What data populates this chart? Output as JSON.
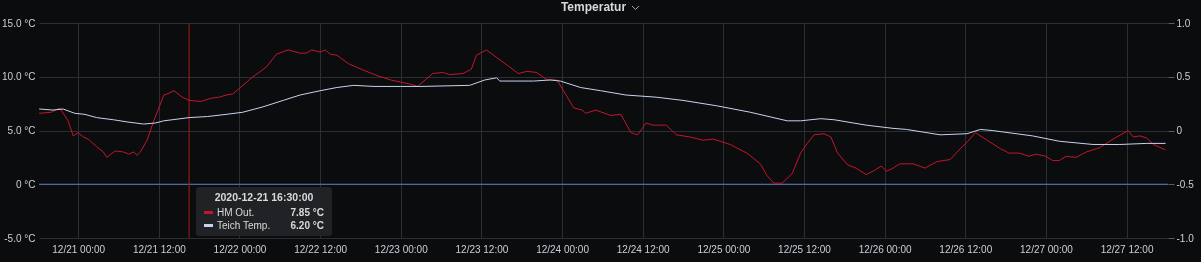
{
  "chart_data": {
    "type": "line",
    "title": "Temperatur",
    "xlim": [
      "2020-12-20T18:10",
      "2020-12-27T18:10"
    ],
    "xticks": [
      {
        "value": "2020-12-21T00:00",
        "label": "12/21 00:00"
      },
      {
        "value": "2020-12-21T12:00",
        "label": "12/21 12:00"
      },
      {
        "value": "2020-12-22T00:00",
        "label": "12/22 00:00"
      },
      {
        "value": "2020-12-22T12:00",
        "label": "12/22 12:00"
      },
      {
        "value": "2020-12-23T00:00",
        "label": "12/23 00:00"
      },
      {
        "value": "2020-12-23T12:00",
        "label": "12/23 12:00"
      },
      {
        "value": "2020-12-24T00:00",
        "label": "12/24 00:00"
      },
      {
        "value": "2020-12-24T12:00",
        "label": "12/24 12:00"
      },
      {
        "value": "2020-12-25T00:00",
        "label": "12/25 00:00"
      },
      {
        "value": "2020-12-25T12:00",
        "label": "12/25 12:00"
      },
      {
        "value": "2020-12-26T00:00",
        "label": "12/26 00:00"
      },
      {
        "value": "2020-12-26T12:00",
        "label": "12/26 12:00"
      },
      {
        "value": "2020-12-27T00:00",
        "label": "12/27 00:00"
      },
      {
        "value": "2020-12-27T12:00",
        "label": "12/27 12:00"
      }
    ],
    "ylim": [
      -5,
      15
    ],
    "yticks": [
      {
        "value": -5,
        "label": "-5.0 °C"
      },
      {
        "value": 0,
        "label": "0 °C"
      },
      {
        "value": 5,
        "label": "5.0 °C"
      },
      {
        "value": 10,
        "label": "10.0 °C"
      },
      {
        "value": 15,
        "label": "15.0 °C"
      }
    ],
    "y2lim": [
      -1,
      1
    ],
    "y2ticks": [
      {
        "value": -1,
        "label": "-1.0"
      },
      {
        "value": -0.5,
        "label": "-0.5"
      },
      {
        "value": 0,
        "label": "0"
      },
      {
        "value": 0.5,
        "label": "0.5"
      },
      {
        "value": 1,
        "label": "1.0"
      }
    ],
    "grid": true,
    "legend": "bottom left",
    "line_style": "solid",
    "series": [
      {
        "name": "HM Out.",
        "color": "#c4162a",
        "x": [
          "2020-12-20T18:15",
          "2020-12-20T20:00",
          "2020-12-20T21:15",
          "2020-12-20T22:30",
          "2020-12-20T23:15",
          "2020-12-21T00:00",
          "2020-12-21T00:45",
          "2020-12-21T01:30",
          "2020-12-21T02:45",
          "2020-12-21T03:45",
          "2020-12-21T04:15",
          "2020-12-21T05:30",
          "2020-12-21T06:45",
          "2020-12-21T07:30",
          "2020-12-21T08:15",
          "2020-12-21T08:45",
          "2020-12-21T09:15",
          "2020-12-21T10:15",
          "2020-12-21T11:15",
          "2020-12-21T12:45",
          "2020-12-21T13:15",
          "2020-12-21T14:15",
          "2020-12-21T15:30",
          "2020-12-21T16:30",
          "2020-12-21T18:15",
          "2020-12-21T19:45",
          "2020-12-21T21:00",
          "2020-12-21T22:00",
          "2020-12-21T23:00",
          "2020-12-22T00:30",
          "2020-12-22T02:00",
          "2020-12-22T04:00",
          "2020-12-22T05:30",
          "2020-12-22T07:15",
          "2020-12-22T09:00",
          "2020-12-22T10:00",
          "2020-12-22T10:45",
          "2020-12-22T12:00",
          "2020-12-22T12:45",
          "2020-12-22T13:30",
          "2020-12-22T14:30",
          "2020-12-22T16:15",
          "2020-12-22T18:30",
          "2020-12-22T20:30",
          "2020-12-22T22:30",
          "2020-12-23T00:00",
          "2020-12-23T01:30",
          "2020-12-23T02:30",
          "2020-12-23T04:45",
          "2020-12-23T06:15",
          "2020-12-23T07:15",
          "2020-12-23T09:15",
          "2020-12-23T10:30",
          "2020-12-23T11:15",
          "2020-12-23T12:45",
          "2020-12-23T14:15",
          "2020-12-23T16:00",
          "2020-12-23T17:30",
          "2020-12-23T18:45",
          "2020-12-23T20:15",
          "2020-12-23T21:45",
          "2020-12-23T23:15",
          "2020-12-24T00:30",
          "2020-12-24T01:45",
          "2020-12-24T03:00",
          "2020-12-24T03:30",
          "2020-12-24T05:00",
          "2020-12-24T07:15",
          "2020-12-24T08:45",
          "2020-12-24T10:15",
          "2020-12-24T11:15",
          "2020-12-24T12:30",
          "2020-12-24T13:30",
          "2020-12-24T15:30",
          "2020-12-24T17:00",
          "2020-12-24T19:00",
          "2020-12-24T21:00",
          "2020-12-24T22:30",
          "2020-12-25T01:00",
          "2020-12-25T03:30",
          "2020-12-25T05:30",
          "2020-12-25T06:30",
          "2020-12-25T07:30",
          "2020-12-25T08:45",
          "2020-12-25T10:15",
          "2020-12-25T11:30",
          "2020-12-25T12:30",
          "2020-12-25T13:30",
          "2020-12-25T15:00",
          "2020-12-25T16:00",
          "2020-12-25T17:00",
          "2020-12-25T18:30",
          "2020-12-25T19:45",
          "2020-12-25T21:15",
          "2020-12-25T22:15",
          "2020-12-25T23:30",
          "2020-12-26T00:15",
          "2020-12-26T01:15",
          "2020-12-26T02:15",
          "2020-12-26T04:15",
          "2020-12-26T06:00",
          "2020-12-26T07:45",
          "2020-12-26T09:45",
          "2020-12-26T11:15",
          "2020-12-26T12:15",
          "2020-12-26T13:30",
          "2020-12-26T15:15",
          "2020-12-26T17:15",
          "2020-12-26T18:30",
          "2020-12-26T20:00",
          "2020-12-26T21:30",
          "2020-12-26T22:30",
          "2020-12-27T00:00",
          "2020-12-27T01:00",
          "2020-12-27T02:00",
          "2020-12-27T03:00",
          "2020-12-27T04:30",
          "2020-12-27T06:00",
          "2020-12-27T08:00",
          "2020-12-27T10:00",
          "2020-12-27T12:15",
          "2020-12-27T13:00",
          "2020-12-27T14:00",
          "2020-12-27T15:00",
          "2020-12-27T16:00",
          "2020-12-27T17:45"
        ],
        "values": [
          6.6,
          6.7,
          7.1,
          5.9,
          4.5,
          4.8,
          4.4,
          4.2,
          3.5,
          3.0,
          2.5,
          3.1,
          3.0,
          2.8,
          3.0,
          2.7,
          3.0,
          4.1,
          5.9,
          8.3,
          8.4,
          8.7,
          8.1,
          7.8,
          7.7,
          8.0,
          8.1,
          8.3,
          8.4,
          9.2,
          10.0,
          10.9,
          12.1,
          12.5,
          12.2,
          12.2,
          12.5,
          12.3,
          12.5,
          12.1,
          12.0,
          11.2,
          10.6,
          10.1,
          9.7,
          9.5,
          9.3,
          9.1,
          10.3,
          10.4,
          10.2,
          10.3,
          10.7,
          12.0,
          12.5,
          11.8,
          11.0,
          10.3,
          10.5,
          10.4,
          9.7,
          9.7,
          8.4,
          7.1,
          6.9,
          6.6,
          6.9,
          6.4,
          6.5,
          4.8,
          4.6,
          5.7,
          5.5,
          5.5,
          4.6,
          4.4,
          4.1,
          4.2,
          3.7,
          2.9,
          1.9,
          0.8,
          0.1,
          0.1,
          1.0,
          2.9,
          3.8,
          4.6,
          4.7,
          4.4,
          2.9,
          1.8,
          1.5,
          0.9,
          1.2,
          1.7,
          1.2,
          1.5,
          1.9,
          1.9,
          1.5,
          2.1,
          2.3,
          3.3,
          3.9,
          4.8,
          4.1,
          3.3,
          2.9,
          2.9,
          2.6,
          2.8,
          2.6,
          2.2,
          2.2,
          2.6,
          2.5,
          3.0,
          3.4,
          4.2,
          5.0,
          4.4,
          4.5,
          4.3,
          3.7,
          3.2
        ]
      },
      {
        "name": "Teich Temp.",
        "color": "#c5d3ec",
        "x": [
          "2020-12-20T18:15",
          "2020-12-20T20:15",
          "2020-12-20T21:45",
          "2020-12-20T23:30",
          "2020-12-21T01:00",
          "2020-12-21T02:45",
          "2020-12-21T05:15",
          "2020-12-21T07:15",
          "2020-12-21T09:45",
          "2020-12-21T11:30",
          "2020-12-21T12:45",
          "2020-12-21T16:30",
          "2020-12-21T19:15",
          "2020-12-21T22:00",
          "2020-12-22T00:30",
          "2020-12-22T03:30",
          "2020-12-22T06:30",
          "2020-12-22T09:00",
          "2020-12-22T12:00",
          "2020-12-22T14:30",
          "2020-12-22T17:00",
          "2020-12-22T20:00",
          "2020-12-23T00:00",
          "2020-12-23T03:00",
          "2020-12-23T10:15",
          "2020-12-23T12:30",
          "2020-12-23T14:15",
          "2020-12-23T14:45",
          "2020-12-23T19:45",
          "2020-12-23T22:15",
          "2020-12-23T23:45",
          "2020-12-24T02:45",
          "2020-12-24T05:45",
          "2020-12-24T09:30",
          "2020-12-24T14:00",
          "2020-12-24T18:00",
          "2020-12-24T23:00",
          "2020-12-25T04:00",
          "2020-12-25T09:30",
          "2020-12-25T11:30",
          "2020-12-25T14:30",
          "2020-12-25T16:30",
          "2020-12-25T21:15",
          "2020-12-26T01:15",
          "2020-12-26T03:15",
          "2020-12-26T08:15",
          "2020-12-26T12:15",
          "2020-12-26T14:15",
          "2020-12-26T16:00",
          "2020-12-26T22:00",
          "2020-12-27T02:00",
          "2020-12-27T07:00",
          "2020-12-27T11:00",
          "2020-12-27T15:00",
          "2020-12-27T17:45"
        ],
        "values": [
          7.0,
          6.9,
          7.0,
          6.6,
          6.5,
          6.2,
          6.0,
          5.8,
          5.6,
          5.7,
          5.9,
          6.2,
          6.3,
          6.5,
          6.7,
          7.2,
          7.8,
          8.3,
          8.7,
          9.0,
          9.2,
          9.1,
          9.1,
          9.1,
          9.2,
          9.7,
          9.9,
          9.6,
          9.6,
          9.7,
          9.6,
          9.0,
          8.7,
          8.3,
          8.1,
          7.8,
          7.3,
          6.7,
          5.9,
          5.9,
          6.1,
          6.0,
          5.5,
          5.2,
          5.1,
          4.6,
          4.7,
          5.1,
          5.0,
          4.5,
          4.0,
          3.7,
          3.7,
          3.8,
          3.8
        ]
      }
    ],
    "ref_lines": [
      {
        "axis": "y",
        "value": 0,
        "color": "#5b7ac4"
      },
      {
        "axis": "x",
        "value": "2020-12-21T16:30",
        "color": "#8e1b1b"
      }
    ],
    "annotations": [
      "2020-12-21 16:30:00",
      "7.85 °C",
      "6.20 °C"
    ]
  }
}
